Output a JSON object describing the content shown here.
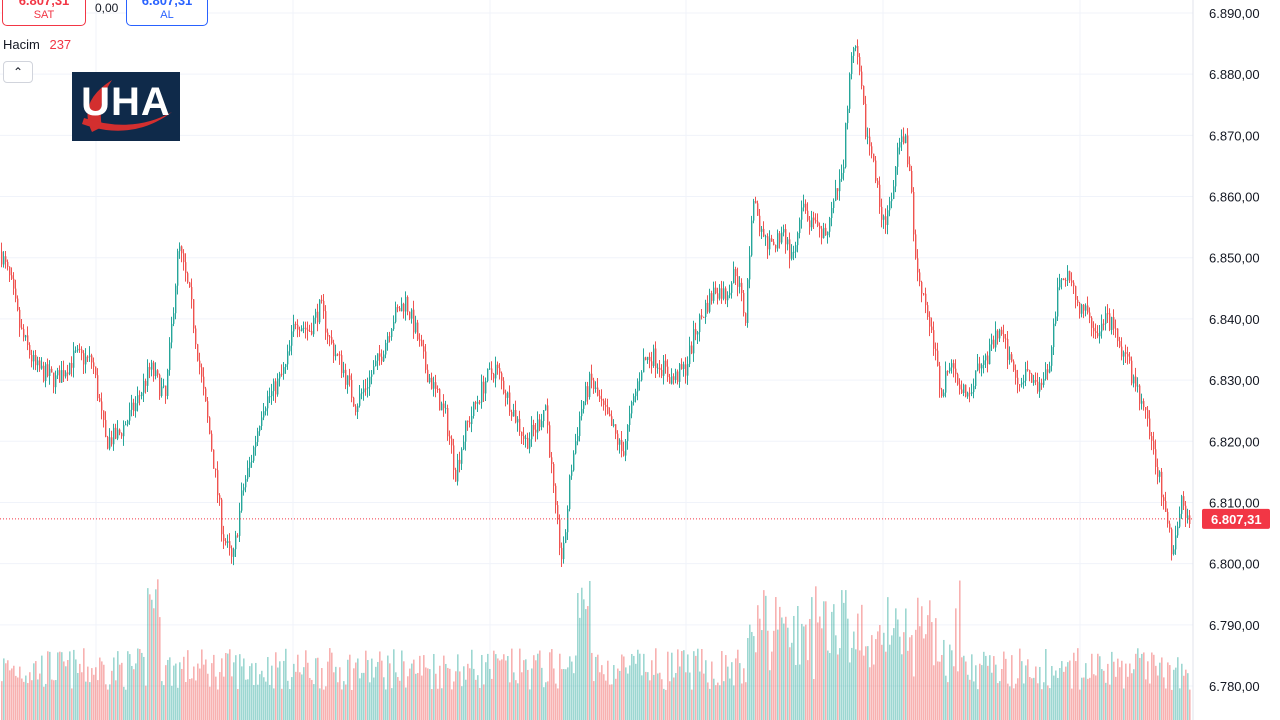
{
  "header": {
    "sell_price": "6.807,31",
    "sell_label": "SAT",
    "spread": "0,00",
    "buy_price": "6.807,31",
    "buy_label": "AL"
  },
  "volume_legend": {
    "name": "Hacim",
    "value": "237"
  },
  "logo": {
    "text": "UHA"
  },
  "colors": {
    "up": "#26a69a",
    "down": "#ef5350",
    "price_tag": "#f23645",
    "grid": "#f0f3fa"
  },
  "chart_data": {
    "type": "candlestick",
    "price_axis_labels": [
      "6.890,00",
      "6.880,00",
      "6.870,00",
      "6.860,00",
      "6.850,00",
      "6.840,00",
      "6.830,00",
      "6.820,00",
      "6.810,00",
      "6.800,00",
      "6.790,00",
      "6.780,00"
    ],
    "ylim": [
      6776,
      6892
    ],
    "last_price": 6807.31,
    "last_price_label": "6.807,31",
    "grid": true,
    "close_path": [
      [
        0,
        6851
      ],
      [
        10,
        6846
      ],
      [
        20,
        6838
      ],
      [
        35,
        6832
      ],
      [
        55,
        6830
      ],
      [
        75,
        6834
      ],
      [
        92,
        6833
      ],
      [
        105,
        6820
      ],
      [
        118,
        6821
      ],
      [
        135,
        6826
      ],
      [
        150,
        6832
      ],
      [
        165,
        6827
      ],
      [
        178,
        6852
      ],
      [
        190,
        6843
      ],
      [
        200,
        6831
      ],
      [
        212,
        6818
      ],
      [
        222,
        6805
      ],
      [
        232,
        6800
      ],
      [
        242,
        6812
      ],
      [
        252,
        6818
      ],
      [
        262,
        6826
      ],
      [
        272,
        6828
      ],
      [
        285,
        6832
      ],
      [
        295,
        6840
      ],
      [
        308,
        6838
      ],
      [
        320,
        6842
      ],
      [
        330,
        6836
      ],
      [
        342,
        6832
      ],
      [
        355,
        6826
      ],
      [
        368,
        6830
      ],
      [
        380,
        6834
      ],
      [
        392,
        6840
      ],
      [
        405,
        6843
      ],
      [
        415,
        6838
      ],
      [
        425,
        6832
      ],
      [
        435,
        6828
      ],
      [
        445,
        6824
      ],
      [
        455,
        6815
      ],
      [
        465,
        6822
      ],
      [
        475,
        6826
      ],
      [
        485,
        6830
      ],
      [
        495,
        6832
      ],
      [
        505,
        6828
      ],
      [
        515,
        6824
      ],
      [
        525,
        6820
      ],
      [
        535,
        6822
      ],
      [
        545,
        6826
      ],
      [
        555,
        6808
      ],
      [
        562,
        6800
      ],
      [
        570,
        6815
      ],
      [
        580,
        6825
      ],
      [
        590,
        6830
      ],
      [
        600,
        6826
      ],
      [
        612,
        6822
      ],
      [
        622,
        6818
      ],
      [
        632,
        6826
      ],
      [
        642,
        6833
      ],
      [
        652,
        6834
      ],
      [
        662,
        6832
      ],
      [
        672,
        6830
      ],
      [
        685,
        6832
      ],
      [
        695,
        6838
      ],
      [
        705,
        6842
      ],
      [
        715,
        6845
      ],
      [
        725,
        6844
      ],
      [
        735,
        6848
      ],
      [
        745,
        6840
      ],
      [
        752,
        6860
      ],
      [
        762,
        6853
      ],
      [
        772,
        6851
      ],
      [
        782,
        6855
      ],
      [
        792,
        6849
      ],
      [
        802,
        6858
      ],
      [
        812,
        6855
      ],
      [
        822,
        6853
      ],
      [
        832,
        6858
      ],
      [
        842,
        6864
      ],
      [
        848,
        6878
      ],
      [
        854,
        6885
      ],
      [
        860,
        6878
      ],
      [
        866,
        6870
      ],
      [
        872,
        6866
      ],
      [
        880,
        6858
      ],
      [
        886,
        6856
      ],
      [
        892,
        6860
      ],
      [
        898,
        6868
      ],
      [
        904,
        6870
      ],
      [
        910,
        6862
      ],
      [
        916,
        6848
      ],
      [
        922,
        6845
      ],
      [
        928,
        6840
      ],
      [
        934,
        6835
      ],
      [
        940,
        6828
      ],
      [
        948,
        6832
      ],
      [
        958,
        6830
      ],
      [
        968,
        6828
      ],
      [
        978,
        6832
      ],
      [
        988,
        6834
      ],
      [
        998,
        6838
      ],
      [
        1008,
        6834
      ],
      [
        1018,
        6830
      ],
      [
        1028,
        6832
      ],
      [
        1038,
        6828
      ],
      [
        1048,
        6832
      ],
      [
        1058,
        6845
      ],
      [
        1068,
        6848
      ],
      [
        1078,
        6842
      ],
      [
        1088,
        6840
      ],
      [
        1098,
        6838
      ],
      [
        1108,
        6840
      ],
      [
        1118,
        6836
      ],
      [
        1128,
        6832
      ],
      [
        1138,
        6828
      ],
      [
        1148,
        6822
      ],
      [
        1158,
        6815
      ],
      [
        1165,
        6808
      ],
      [
        1172,
        6802
      ],
      [
        1180,
        6810
      ],
      [
        1188,
        6808
      ],
      [
        1192,
        6807.31
      ]
    ]
  }
}
